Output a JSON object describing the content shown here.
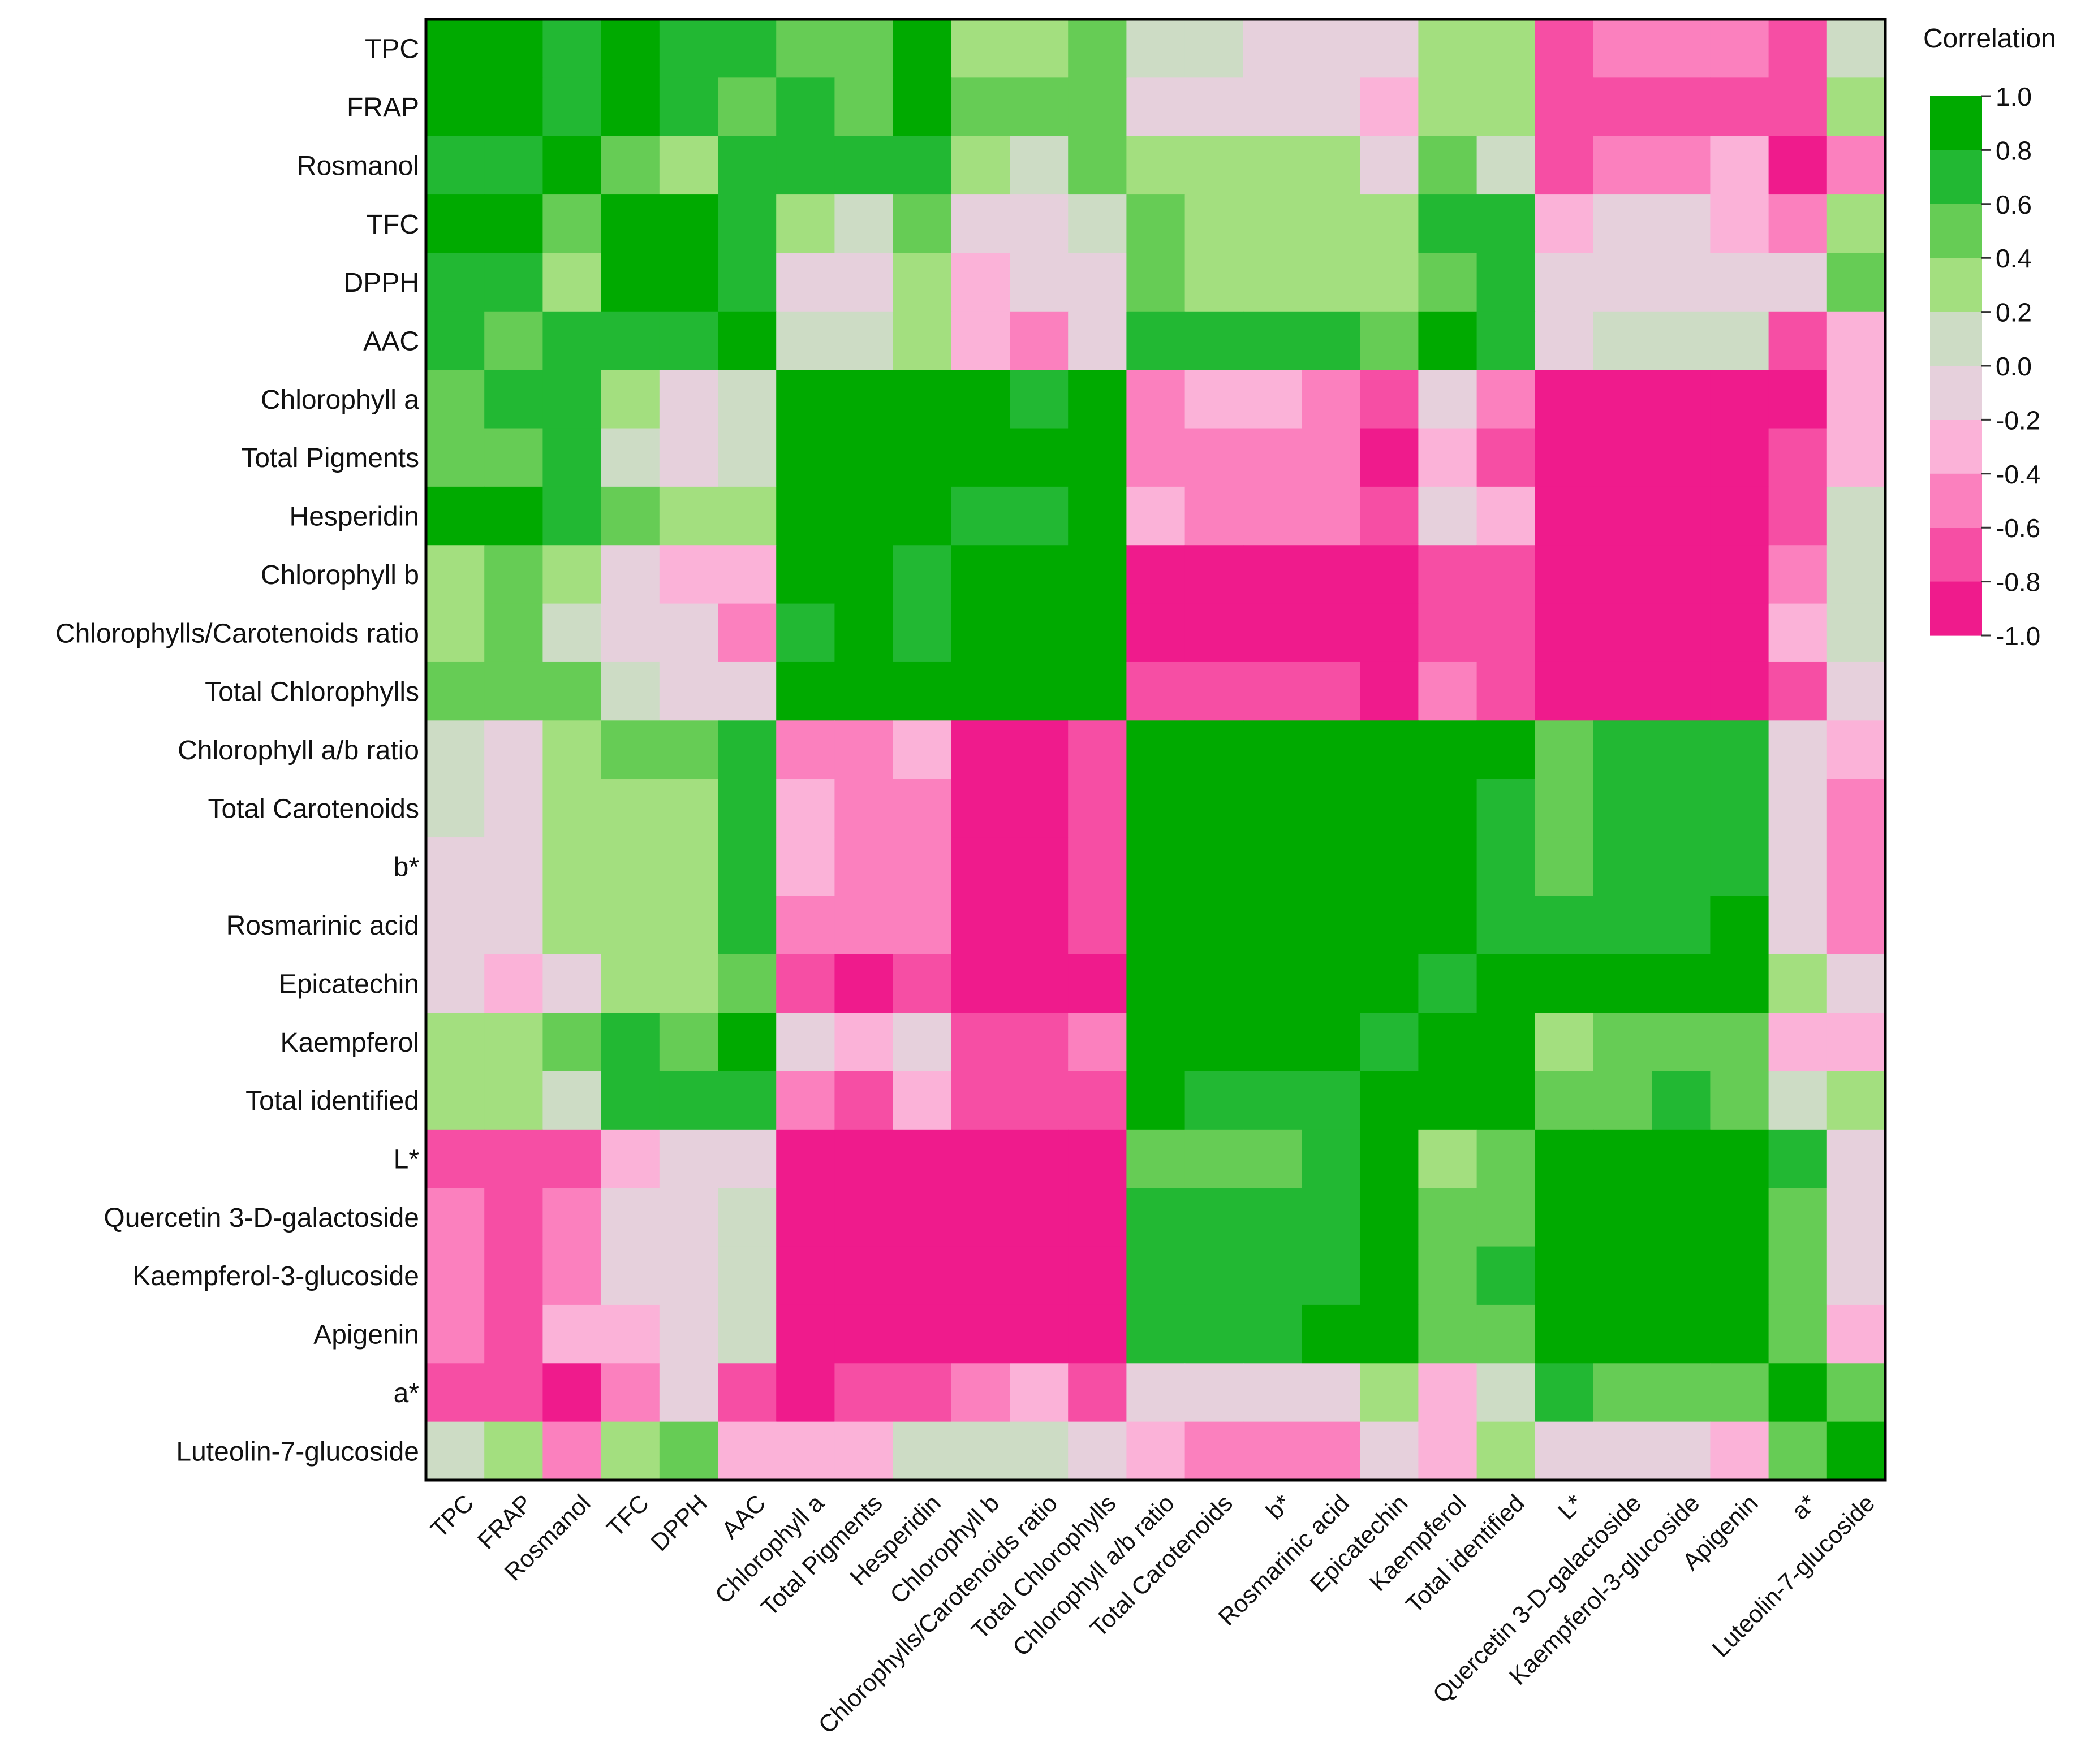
{
  "chart_data": {
    "type": "heatmap",
    "title": "",
    "legend_title": "Correlation",
    "legend_position": "top-right",
    "value_range": [
      -1.0,
      1.0
    ],
    "legend_ticks": [
      "1.0",
      "0.8",
      "0.6",
      "0.4",
      "0.2",
      "0.0",
      "-0.2",
      "-0.4",
      "-0.6",
      "-0.8",
      "-1.0"
    ],
    "legend_bins": [
      {
        "range": [
          0.8,
          1.0
        ],
        "color": "#00aa00"
      },
      {
        "range": [
          0.6,
          0.8
        ],
        "color": "#22b833"
      },
      {
        "range": [
          0.4,
          0.6
        ],
        "color": "#66cc55"
      },
      {
        "range": [
          0.2,
          0.4
        ],
        "color": "#a3df7f"
      },
      {
        "range": [
          0.0,
          0.2
        ],
        "color": "#cddcc5"
      },
      {
        "range": [
          -0.2,
          0.0
        ],
        "color": "#e6d0dc"
      },
      {
        "range": [
          -0.4,
          -0.2
        ],
        "color": "#fbb2d8"
      },
      {
        "range": [
          -0.6,
          -0.4
        ],
        "color": "#fb80be"
      },
      {
        "range": [
          -0.8,
          -0.6
        ],
        "color": "#f64ea4"
      },
      {
        "range": [
          -1.0,
          -0.8
        ],
        "color": "#ef1b8c"
      }
    ],
    "row_labels": [
      "TPC",
      "FRAP",
      "Rosmanol",
      "TFC",
      "DPPH",
      "AAC",
      "Chlorophyll a",
      "Total Pigments",
      "Hesperidin",
      "Chlorophyll b",
      "Chlorophylls/Carotenoids ratio",
      "Total Chlorophylls",
      "Chlorophyll a/b ratio",
      "Total Carotenoids",
      "b*",
      "Rosmarinic acid",
      "Epicatechin",
      "Kaempferol",
      "Total identified",
      "L*",
      "Quercetin 3-D-galactoside",
      "Kaempferol-3-glucoside",
      "Apigenin",
      "a*",
      "Luteolin-7-glucoside"
    ],
    "col_labels": [
      "TPC",
      "FRAP",
      "Rosmanol",
      "TFC",
      "DPPH",
      "AAC",
      "Chlorophyll a",
      "Total Pigments",
      "Hesperidin",
      "Chlorophyll b",
      "Chlorophylls/Carotenoids ratio",
      "Total Chlorophylls",
      "Chlorophyll a/b ratio",
      "Total Carotenoids",
      "b*",
      "Rosmarinic acid",
      "Epicatechin",
      "Kaempferol",
      "Total identified",
      "L*",
      "Quercetin 3-D-galactoside",
      "Kaempferol-3-glucoside",
      "Apigenin",
      "a*",
      "Luteolin-7-glucoside"
    ],
    "values": [
      [
        1.0,
        0.9,
        0.7,
        0.9,
        0.7,
        0.7,
        0.5,
        0.5,
        0.9,
        0.3,
        0.3,
        0.5,
        0.1,
        0.1,
        -0.1,
        -0.1,
        -0.1,
        0.3,
        0.3,
        -0.7,
        -0.5,
        -0.5,
        -0.5,
        -0.7,
        0.1
      ],
      [
        0.9,
        1.0,
        0.7,
        0.9,
        0.7,
        0.5,
        0.7,
        0.5,
        0.9,
        0.5,
        0.5,
        0.5,
        -0.1,
        -0.1,
        -0.1,
        -0.1,
        -0.3,
        0.3,
        0.3,
        -0.7,
        -0.7,
        -0.7,
        -0.7,
        -0.7,
        0.3
      ],
      [
        0.7,
        0.7,
        1.0,
        0.5,
        0.3,
        0.7,
        0.7,
        0.7,
        0.7,
        0.3,
        0.1,
        0.5,
        0.3,
        0.3,
        0.3,
        0.3,
        -0.1,
        0.5,
        0.1,
        -0.7,
        -0.5,
        -0.5,
        -0.3,
        -0.9,
        -0.5
      ],
      [
        0.9,
        0.9,
        0.5,
        1.0,
        0.9,
        0.7,
        0.3,
        0.1,
        0.5,
        -0.1,
        -0.1,
        0.1,
        0.5,
        0.3,
        0.3,
        0.3,
        0.3,
        0.7,
        0.7,
        -0.3,
        -0.1,
        -0.1,
        -0.3,
        -0.5,
        0.3
      ],
      [
        0.7,
        0.7,
        0.3,
        0.9,
        1.0,
        0.7,
        -0.1,
        -0.1,
        0.3,
        -0.3,
        -0.1,
        -0.1,
        0.5,
        0.3,
        0.3,
        0.3,
        0.3,
        0.5,
        0.7,
        -0.1,
        -0.1,
        -0.1,
        -0.1,
        -0.1,
        0.5
      ],
      [
        0.7,
        0.5,
        0.7,
        0.7,
        0.7,
        1.0,
        0.1,
        0.1,
        0.3,
        -0.3,
        -0.5,
        -0.1,
        0.7,
        0.7,
        0.7,
        0.7,
        0.5,
        0.9,
        0.7,
        -0.1,
        0.1,
        0.1,
        0.1,
        -0.7,
        -0.3
      ],
      [
        0.5,
        0.7,
        0.7,
        0.3,
        -0.1,
        0.1,
        1.0,
        0.9,
        0.9,
        0.9,
        0.7,
        0.9,
        -0.5,
        -0.3,
        -0.3,
        -0.5,
        -0.7,
        -0.1,
        -0.5,
        -0.9,
        -0.9,
        -0.9,
        -0.9,
        -0.9,
        -0.3
      ],
      [
        0.5,
        0.5,
        0.7,
        0.1,
        -0.1,
        0.1,
        0.9,
        1.0,
        0.9,
        0.9,
        0.9,
        0.9,
        -0.5,
        -0.5,
        -0.5,
        -0.5,
        -0.9,
        -0.3,
        -0.7,
        -0.9,
        -0.9,
        -0.9,
        -0.9,
        -0.7,
        -0.3
      ],
      [
        0.9,
        0.9,
        0.7,
        0.5,
        0.3,
        0.3,
        0.9,
        0.9,
        1.0,
        0.7,
        0.7,
        0.9,
        -0.3,
        -0.5,
        -0.5,
        -0.5,
        -0.7,
        -0.1,
        -0.3,
        -0.9,
        -0.9,
        -0.9,
        -0.9,
        -0.7,
        0.1
      ],
      [
        0.3,
        0.5,
        0.3,
        -0.1,
        -0.3,
        -0.3,
        0.9,
        0.9,
        0.7,
        1.0,
        0.9,
        0.9,
        -0.9,
        -0.9,
        -0.9,
        -0.9,
        -0.9,
        -0.7,
        -0.7,
        -0.9,
        -0.9,
        -0.9,
        -0.9,
        -0.5,
        0.1
      ],
      [
        0.3,
        0.5,
        0.1,
        -0.1,
        -0.1,
        -0.5,
        0.7,
        0.9,
        0.7,
        0.9,
        1.0,
        0.9,
        -0.9,
        -0.9,
        -0.9,
        -0.9,
        -0.9,
        -0.7,
        -0.7,
        -0.9,
        -0.9,
        -0.9,
        -0.9,
        -0.3,
        0.1
      ],
      [
        0.5,
        0.5,
        0.5,
        0.1,
        -0.1,
        -0.1,
        0.9,
        0.9,
        0.9,
        0.9,
        0.9,
        1.0,
        -0.7,
        -0.7,
        -0.7,
        -0.7,
        -0.9,
        -0.5,
        -0.7,
        -0.9,
        -0.9,
        -0.9,
        -0.9,
        -0.7,
        -0.1
      ],
      [
        0.1,
        -0.1,
        0.3,
        0.5,
        0.5,
        0.7,
        -0.5,
        -0.5,
        -0.3,
        -0.9,
        -0.9,
        -0.7,
        1.0,
        0.9,
        0.9,
        0.9,
        0.9,
        0.9,
        0.9,
        0.5,
        0.7,
        0.7,
        0.7,
        -0.1,
        -0.3
      ],
      [
        0.1,
        -0.1,
        0.3,
        0.3,
        0.3,
        0.7,
        -0.3,
        -0.5,
        -0.5,
        -0.9,
        -0.9,
        -0.7,
        0.9,
        1.0,
        0.9,
        0.9,
        0.9,
        0.9,
        0.7,
        0.5,
        0.7,
        0.7,
        0.7,
        -0.1,
        -0.5
      ],
      [
        -0.1,
        -0.1,
        0.3,
        0.3,
        0.3,
        0.7,
        -0.3,
        -0.5,
        -0.5,
        -0.9,
        -0.9,
        -0.7,
        0.9,
        0.9,
        1.0,
        0.9,
        0.9,
        0.9,
        0.7,
        0.5,
        0.7,
        0.7,
        0.7,
        -0.1,
        -0.5
      ],
      [
        -0.1,
        -0.1,
        0.3,
        0.3,
        0.3,
        0.7,
        -0.5,
        -0.5,
        -0.5,
        -0.9,
        -0.9,
        -0.7,
        0.9,
        0.9,
        0.9,
        1.0,
        0.9,
        0.9,
        0.7,
        0.7,
        0.7,
        0.7,
        0.9,
        -0.1,
        -0.5
      ],
      [
        -0.1,
        -0.3,
        -0.1,
        0.3,
        0.3,
        0.5,
        -0.7,
        -0.9,
        -0.7,
        -0.9,
        -0.9,
        -0.9,
        0.9,
        0.9,
        0.9,
        0.9,
        1.0,
        0.7,
        0.9,
        0.9,
        0.9,
        0.9,
        0.9,
        0.3,
        -0.1
      ],
      [
        0.3,
        0.3,
        0.5,
        0.7,
        0.5,
        0.9,
        -0.1,
        -0.3,
        -0.1,
        -0.7,
        -0.7,
        -0.5,
        0.9,
        0.9,
        0.9,
        0.9,
        0.7,
        1.0,
        0.9,
        0.3,
        0.5,
        0.5,
        0.5,
        -0.3,
        -0.3
      ],
      [
        0.3,
        0.3,
        0.1,
        0.7,
        0.7,
        0.7,
        -0.5,
        -0.7,
        -0.3,
        -0.7,
        -0.7,
        -0.7,
        0.9,
        0.7,
        0.7,
        0.7,
        0.9,
        0.9,
        1.0,
        0.5,
        0.5,
        0.7,
        0.5,
        0.1,
        0.3
      ],
      [
        -0.7,
        -0.7,
        -0.7,
        -0.3,
        -0.1,
        -0.1,
        -0.9,
        -0.9,
        -0.9,
        -0.9,
        -0.9,
        -0.9,
        0.5,
        0.5,
        0.5,
        0.7,
        0.9,
        0.3,
        0.5,
        1.0,
        0.9,
        0.9,
        0.9,
        0.7,
        -0.1
      ],
      [
        -0.5,
        -0.7,
        -0.5,
        -0.1,
        -0.1,
        0.1,
        -0.9,
        -0.9,
        -0.9,
        -0.9,
        -0.9,
        -0.9,
        0.7,
        0.7,
        0.7,
        0.7,
        0.9,
        0.5,
        0.5,
        0.9,
        1.0,
        0.9,
        0.9,
        0.5,
        -0.1
      ],
      [
        -0.5,
        -0.7,
        -0.5,
        -0.1,
        -0.1,
        0.1,
        -0.9,
        -0.9,
        -0.9,
        -0.9,
        -0.9,
        -0.9,
        0.7,
        0.7,
        0.7,
        0.7,
        0.9,
        0.5,
        0.7,
        0.9,
        0.9,
        1.0,
        0.9,
        0.5,
        -0.1
      ],
      [
        -0.5,
        -0.7,
        -0.3,
        -0.3,
        -0.1,
        0.1,
        -0.9,
        -0.9,
        -0.9,
        -0.9,
        -0.9,
        -0.9,
        0.7,
        0.7,
        0.7,
        0.9,
        0.9,
        0.5,
        0.5,
        0.9,
        0.9,
        0.9,
        1.0,
        0.5,
        -0.3
      ],
      [
        -0.7,
        -0.7,
        -0.9,
        -0.5,
        -0.1,
        -0.7,
        -0.9,
        -0.7,
        -0.7,
        -0.5,
        -0.3,
        -0.7,
        -0.1,
        -0.1,
        -0.1,
        -0.1,
        0.3,
        -0.3,
        0.1,
        0.7,
        0.5,
        0.5,
        0.5,
        1.0,
        0.5
      ],
      [
        0.1,
        0.3,
        -0.5,
        0.3,
        0.5,
        -0.3,
        -0.3,
        -0.3,
        0.1,
        0.1,
        0.1,
        -0.1,
        -0.3,
        -0.5,
        -0.5,
        -0.5,
        -0.1,
        -0.3,
        0.3,
        -0.1,
        -0.1,
        -0.1,
        -0.3,
        0.5,
        1.0
      ]
    ]
  }
}
